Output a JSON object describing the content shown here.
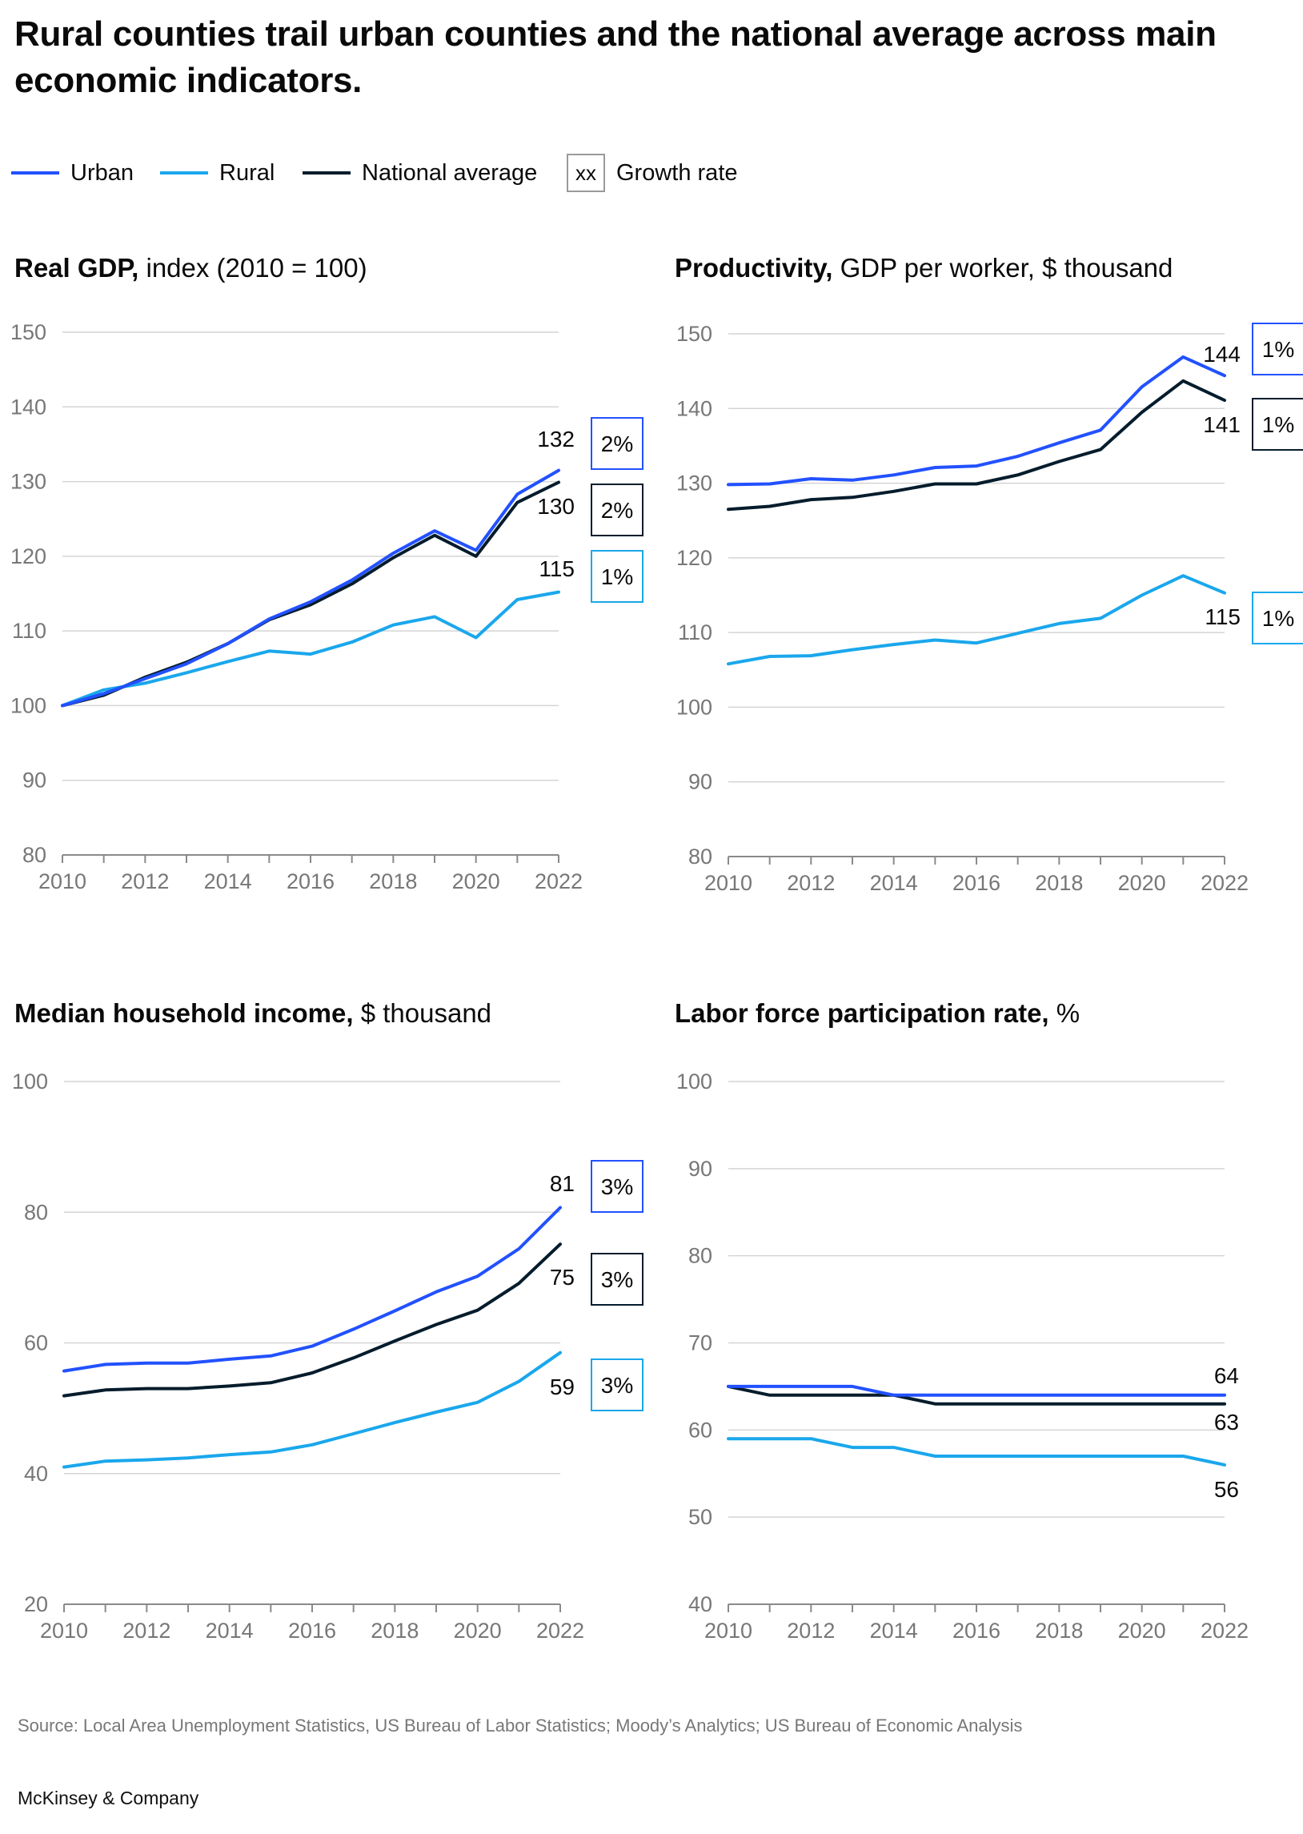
{
  "title": "Rural counties trail urban counties and the national average across main economic indicators.",
  "colors": {
    "urban": "#2251ff",
    "rural": "#1aa7ec",
    "national": "#051c2c",
    "grid": "#d4d4d4",
    "axis": "#8a8a8a"
  },
  "legend": {
    "urban": "Urban",
    "rural": "Rural",
    "national": "National average",
    "growth_box": "xx",
    "growth": "Growth rate"
  },
  "chart_data": [
    {
      "type": "line",
      "title_bold": "Real GDP,",
      "title_rest": "index (2010 = 100)",
      "x": [
        2010,
        2011,
        2012,
        2013,
        2014,
        2015,
        2016,
        2017,
        2018,
        2019,
        2020,
        2021,
        2022
      ],
      "x_ticks": [
        2010,
        2012,
        2014,
        2016,
        2018,
        2020,
        2022
      ],
      "x_tick_labels": [
        "2010",
        "2012",
        "2014",
        "2016",
        "2018",
        "2020",
        "2022"
      ],
      "y_ticks": [
        80,
        90,
        100,
        110,
        120,
        130,
        140,
        150
      ],
      "y_tick_labels": [
        "80",
        "90",
        "100",
        "110",
        "120",
        "130",
        "140",
        "150"
      ],
      "ylim": [
        80,
        150
      ],
      "series": [
        {
          "key": "urban",
          "name": "Urban",
          "values": [
            100,
            101.6,
            103.6,
            105.6,
            108.3,
            111.6,
            113.9,
            116.8,
            120.4,
            123.4,
            120.8,
            128.3,
            131.5
          ],
          "end_label": "132",
          "growth": "2%"
        },
        {
          "key": "national",
          "name": "National average",
          "values": [
            100,
            101.4,
            103.8,
            105.8,
            108.3,
            111.5,
            113.5,
            116.3,
            119.8,
            122.8,
            120.0,
            127.2,
            129.9
          ],
          "end_label": "130",
          "growth": "2%"
        },
        {
          "key": "rural",
          "name": "Rural",
          "values": [
            100,
            102.1,
            103.0,
            104.4,
            105.9,
            107.3,
            106.9,
            108.5,
            110.8,
            111.9,
            109.1,
            114.2,
            115.2
          ],
          "end_label": "115",
          "growth": "1%"
        }
      ]
    },
    {
      "type": "line",
      "title_bold": "Productivity,",
      "title_rest": "GDP per worker, $ thousand",
      "x": [
        2010,
        2011,
        2012,
        2013,
        2014,
        2015,
        2016,
        2017,
        2018,
        2019,
        2020,
        2021,
        2022
      ],
      "x_ticks": [
        2010,
        2012,
        2014,
        2016,
        2018,
        2020,
        2022
      ],
      "x_tick_labels": [
        "2010",
        "2012",
        "2014",
        "2016",
        "2018",
        "2020",
        "2022"
      ],
      "y_ticks": [
        80,
        90,
        100,
        110,
        120,
        130,
        140,
        150
      ],
      "y_tick_labels": [
        "80",
        "90",
        "100",
        "110",
        "120",
        "130",
        "140",
        "150"
      ],
      "ylim": [
        80,
        150
      ],
      "series": [
        {
          "key": "urban",
          "name": "Urban",
          "values": [
            129.8,
            129.9,
            130.6,
            130.4,
            131.1,
            132.1,
            132.3,
            133.6,
            135.4,
            137.1,
            142.9,
            146.9,
            144.4
          ],
          "end_label": "144",
          "growth": "1%"
        },
        {
          "key": "national",
          "name": "National average",
          "values": [
            126.5,
            126.9,
            127.8,
            128.1,
            128.9,
            129.9,
            129.9,
            131.1,
            132.9,
            134.5,
            139.5,
            143.7,
            141.1
          ],
          "end_label": "141",
          "growth": "1%"
        },
        {
          "key": "rural",
          "name": "Rural",
          "values": [
            105.8,
            106.8,
            106.9,
            107.7,
            108.4,
            109.0,
            108.6,
            109.9,
            111.2,
            111.9,
            115.0,
            117.6,
            115.3
          ],
          "end_label": "115",
          "growth": "1%"
        }
      ]
    },
    {
      "type": "line",
      "title_bold": "Median household income,",
      "title_rest": "$ thousand",
      "x": [
        2010,
        2011,
        2012,
        2013,
        2014,
        2015,
        2016,
        2017,
        2018,
        2019,
        2020,
        2021,
        2022
      ],
      "x_ticks": [
        2010,
        2012,
        2014,
        2016,
        2018,
        2020,
        2022
      ],
      "x_tick_labels": [
        "2010",
        "2012",
        "2014",
        "2016",
        "2018",
        "2020",
        "2022"
      ],
      "y_ticks": [
        20,
        40,
        60,
        80,
        100
      ],
      "y_tick_labels": [
        "20",
        "40",
        "60",
        "80",
        "100"
      ],
      "ylim": [
        20,
        100
      ],
      "series": [
        {
          "key": "urban",
          "name": "Urban",
          "values": [
            55.7,
            56.7,
            56.9,
            56.9,
            57.5,
            58.0,
            59.5,
            62.1,
            64.9,
            67.8,
            70.2,
            74.4,
            80.7
          ],
          "end_label": "81",
          "growth": "3%"
        },
        {
          "key": "national",
          "name": "National average",
          "values": [
            51.9,
            52.8,
            53.0,
            53.0,
            53.4,
            53.9,
            55.4,
            57.7,
            60.3,
            62.8,
            65.0,
            69.1,
            75.1
          ],
          "end_label": "75",
          "growth": "3%"
        },
        {
          "key": "rural",
          "name": "Rural",
          "values": [
            41.0,
            41.9,
            42.1,
            42.4,
            42.9,
            43.3,
            44.4,
            46.1,
            47.8,
            49.4,
            50.9,
            54.1,
            58.5
          ],
          "end_label": "59",
          "growth": "3%"
        }
      ]
    },
    {
      "type": "line",
      "title_bold": "Labor force participation rate,",
      "title_rest": "%",
      "x": [
        2010,
        2011,
        2012,
        2013,
        2014,
        2015,
        2016,
        2017,
        2018,
        2019,
        2020,
        2021,
        2022
      ],
      "x_ticks": [
        2010,
        2012,
        2014,
        2016,
        2018,
        2020,
        2022
      ],
      "x_tick_labels": [
        "2010",
        "2012",
        "2014",
        "2016",
        "2018",
        "2020",
        "2022"
      ],
      "y_ticks": [
        40,
        50,
        60,
        70,
        80,
        90,
        100
      ],
      "y_tick_labels": [
        "40",
        "50",
        "60",
        "70",
        "80",
        "90",
        "100"
      ],
      "ylim": [
        40,
        100
      ],
      "series": [
        {
          "key": "urban",
          "name": "Urban",
          "values": [
            65,
            65,
            65,
            65,
            64,
            64,
            64,
            64,
            64,
            64,
            64,
            64,
            64
          ],
          "end_label": "64",
          "growth": ""
        },
        {
          "key": "national",
          "name": "National average",
          "values": [
            65,
            64,
            64,
            64,
            64,
            63,
            63,
            63,
            63,
            63,
            63,
            63,
            63
          ],
          "end_label": "63",
          "growth": ""
        },
        {
          "key": "rural",
          "name": "Rural",
          "values": [
            59,
            59,
            59,
            58,
            58,
            57,
            57,
            57,
            57,
            57,
            57,
            57,
            56
          ],
          "end_label": "56",
          "growth": ""
        }
      ]
    }
  ],
  "source": "Source: Local Area Unemployment Statistics, US Bureau of Labor Statistics; Moody’s Analytics; US Bureau of Economic Analysis",
  "brand": "McKinsey & Company"
}
